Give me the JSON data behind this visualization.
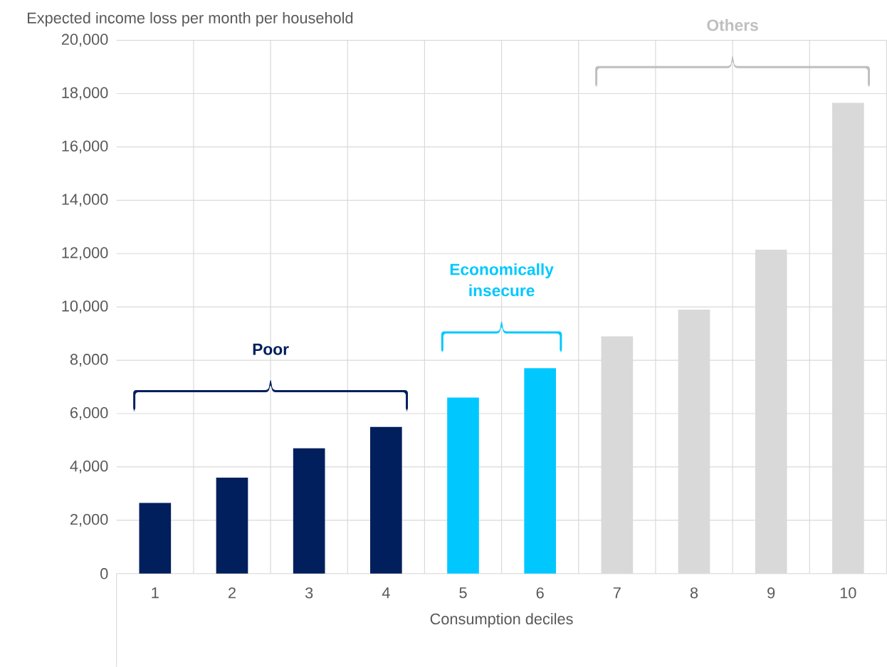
{
  "chart_data": {
    "type": "bar",
    "ylabel": "Expected income loss per month per household",
    "xlabel": "Consumption deciles",
    "categories": [
      "1",
      "2",
      "3",
      "4",
      "5",
      "6",
      "7",
      "8",
      "9",
      "10"
    ],
    "values": [
      2650,
      3600,
      4700,
      5500,
      6600,
      7700,
      8900,
      9900,
      12150,
      17650
    ],
    "colors": [
      "#001f5c",
      "#001f5c",
      "#001f5c",
      "#001f5c",
      "#00c8ff",
      "#00c8ff",
      "#d9d9d9",
      "#d9d9d9",
      "#d9d9d9",
      "#d9d9d9"
    ],
    "ylim": [
      0,
      20000
    ],
    "yticks": [
      {
        "value": 0,
        "label": "0"
      },
      {
        "value": 2000,
        "label": "2,000"
      },
      {
        "value": 4000,
        "label": "4,000"
      },
      {
        "value": 6000,
        "label": "6,000"
      },
      {
        "value": 8000,
        "label": "8,000"
      },
      {
        "value": 10000,
        "label": "10,000"
      },
      {
        "value": 12000,
        "label": "12,000"
      },
      {
        "value": 14000,
        "label": "14,000"
      },
      {
        "value": 16000,
        "label": "16,000"
      },
      {
        "value": 18000,
        "label": "18,000"
      },
      {
        "value": 20000,
        "label": "20,000"
      }
    ],
    "grid": true,
    "annotations": [
      "Poor",
      "Economically insecure",
      "Others"
    ]
  }
}
